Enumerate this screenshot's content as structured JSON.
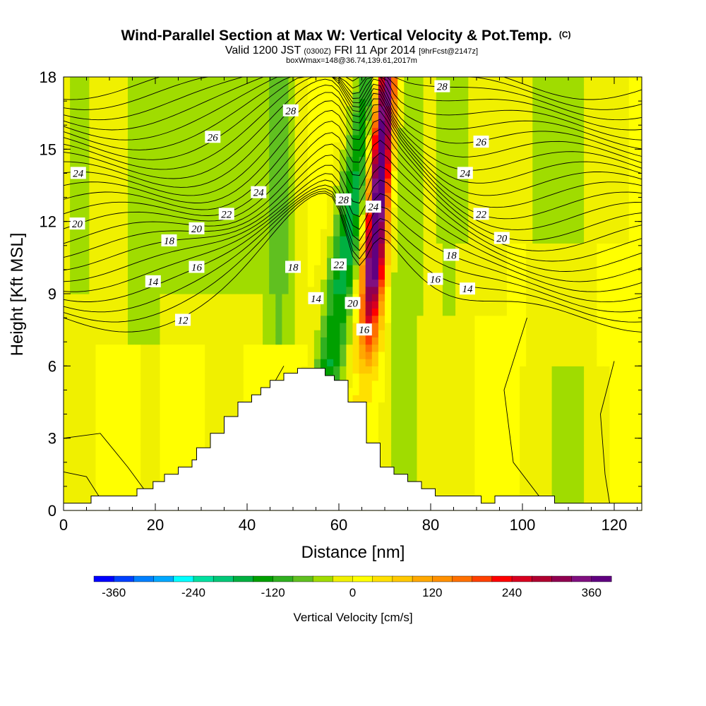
{
  "chart_data": {
    "type": "heatmap",
    "title": "Wind-Parallel Section at Max W: Vertical Velocity & Pot.Temp.",
    "title_mark": "(C)",
    "subtitle_parts": [
      "Valid 1200 JST",
      "(0300Z)",
      "FRI 11 Apr 2014",
      "[9hrFcst@2147z]"
    ],
    "subtitle2": "boxWmax=148@36.74,139.61,2017m",
    "xlabel": "Distance [nm]",
    "ylabel": "Height [Kft MSL]",
    "xlim": [
      0,
      126
    ],
    "ylim": [
      0,
      18
    ],
    "x_ticks": [
      0,
      20,
      40,
      60,
      80,
      100,
      120
    ],
    "y_ticks": [
      0,
      3,
      6,
      9,
      12,
      15,
      18
    ],
    "colorbar": {
      "label": "Vertical Velocity [cm/s]",
      "levels": [
        -390,
        -360,
        -330,
        -300,
        -270,
        -240,
        -210,
        -180,
        -150,
        -120,
        -90,
        -60,
        -30,
        0,
        30,
        60,
        90,
        120,
        150,
        180,
        210,
        240,
        270,
        300,
        330,
        360,
        390
      ],
      "colors": [
        "#0000ff",
        "#0040ff",
        "#0080ff",
        "#00a8ff",
        "#00ffff",
        "#00e0a0",
        "#00c878",
        "#00b040",
        "#00a000",
        "#30b020",
        "#60c020",
        "#a0dc00",
        "#f0f000",
        "#ffff00",
        "#ffe000",
        "#ffc800",
        "#ffa800",
        "#ff9000",
        "#ff7000",
        "#ff4000",
        "#ff0000",
        "#d80020",
        "#b00030",
        "#900050",
        "#801080",
        "#600080"
      ],
      "tick_values": [
        -360,
        -240,
        -120,
        0,
        120,
        240,
        360
      ]
    },
    "contour_labels": [
      {
        "v": "24",
        "x": 3.2,
        "y": 14.0
      },
      {
        "v": "26",
        "x": 32.5,
        "y": 15.5
      },
      {
        "v": "28",
        "x": 49.5,
        "y": 16.6
      },
      {
        "v": "24",
        "x": 42.5,
        "y": 13.2
      },
      {
        "v": "22",
        "x": 35.5,
        "y": 12.3
      },
      {
        "v": "20",
        "x": 29.0,
        "y": 11.7
      },
      {
        "v": "20",
        "x": 3.0,
        "y": 11.9
      },
      {
        "v": "18",
        "x": 23.0,
        "y": 11.2
      },
      {
        "v": "16",
        "x": 29.0,
        "y": 10.1
      },
      {
        "v": "14",
        "x": 19.5,
        "y": 9.5
      },
      {
        "v": "12",
        "x": 26.0,
        "y": 7.9
      },
      {
        "v": "18",
        "x": 50.0,
        "y": 10.1
      },
      {
        "v": "14",
        "x": 55.0,
        "y": 8.8
      },
      {
        "v": "22",
        "x": 60.0,
        "y": 10.2
      },
      {
        "v": "20",
        "x": 63.0,
        "y": 8.6
      },
      {
        "v": "16",
        "x": 65.5,
        "y": 7.5
      },
      {
        "v": "28",
        "x": 61.0,
        "y": 12.9
      },
      {
        "v": "24",
        "x": 67.5,
        "y": 12.6
      },
      {
        "v": "28",
        "x": 82.5,
        "y": 17.6
      },
      {
        "v": "26",
        "x": 91.0,
        "y": 15.3
      },
      {
        "v": "24",
        "x": 87.5,
        "y": 14.0
      },
      {
        "v": "22",
        "x": 91.0,
        "y": 12.3
      },
      {
        "v": "20",
        "x": 95.5,
        "y": 11.3
      },
      {
        "v": "18",
        "x": 84.5,
        "y": 10.6
      },
      {
        "v": "16",
        "x": 81.0,
        "y": 9.6
      },
      {
        "v": "14",
        "x": 88.0,
        "y": 9.2
      }
    ]
  }
}
